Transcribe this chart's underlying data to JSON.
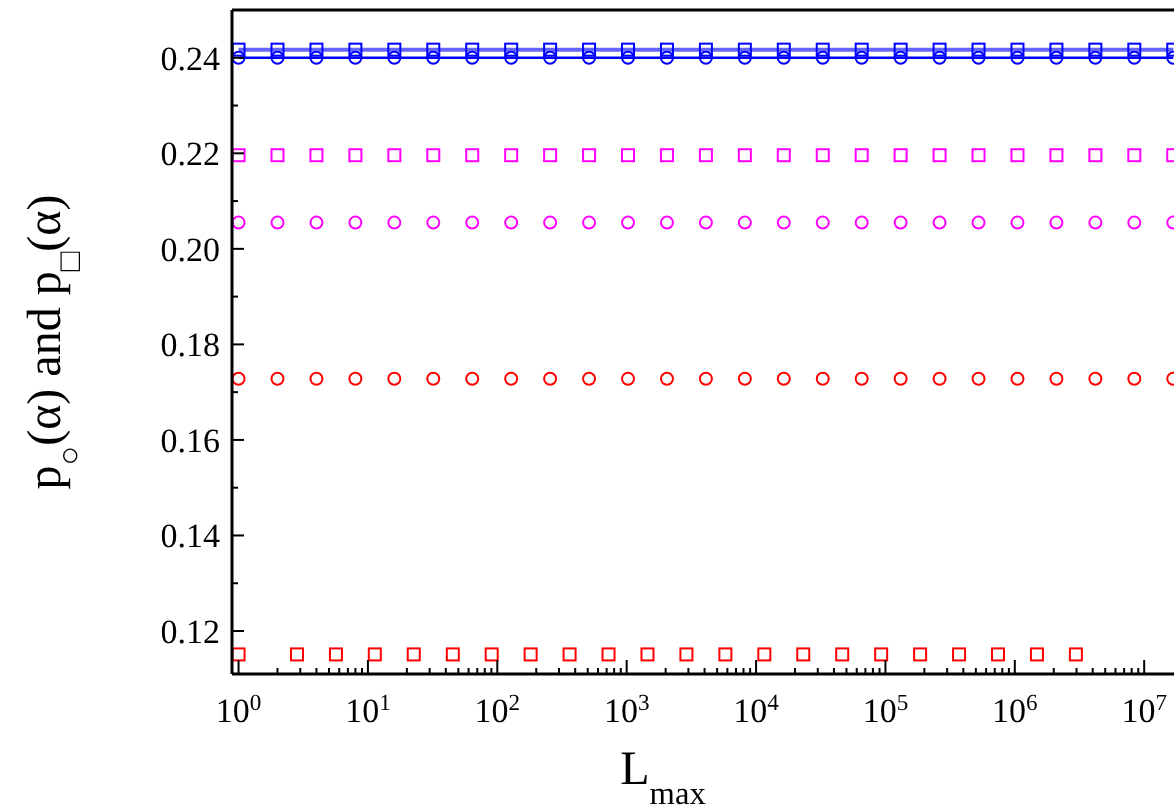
{
  "chart_data": {
    "type": "line",
    "xlabel": "L$_{max}$",
    "ylabel": "p$_{○}$(α) and p$_{□}$(α)",
    "log": "x",
    "grid": false,
    "xlim": [
      0.89,
      17000000
    ],
    "ylim": [
      0.111,
      0.25
    ],
    "xticks": [
      {
        "value": 1,
        "label": "10$^{0}$"
      },
      {
        "value": 2,
        "label": null
      },
      {
        "value": 3,
        "label": null
      },
      {
        "value": 4,
        "label": null
      },
      {
        "value": 5,
        "label": null
      },
      {
        "value": 6,
        "label": null
      },
      {
        "value": 7,
        "label": null
      },
      {
        "value": 8,
        "label": null
      },
      {
        "value": 9,
        "label": null
      },
      {
        "value": 10,
        "label": "10$^{1}$"
      },
      {
        "value": 20,
        "label": null
      },
      {
        "value": 30,
        "label": null
      },
      {
        "value": 40,
        "label": null
      },
      {
        "value": 50,
        "label": null
      },
      {
        "value": 60,
        "label": null
      },
      {
        "value": 70,
        "label": null
      },
      {
        "value": 80,
        "label": null
      },
      {
        "value": 90,
        "label": null
      },
      {
        "value": 100,
        "label": "10$^{2}$"
      },
      {
        "value": 200,
        "label": null
      },
      {
        "value": 300,
        "label": null
      },
      {
        "value": 400,
        "label": null
      },
      {
        "value": 500,
        "label": null
      },
      {
        "value": 600,
        "label": null
      },
      {
        "value": 700,
        "label": null
      },
      {
        "value": 800,
        "label": null
      },
      {
        "value": 900,
        "label": null
      },
      {
        "value": 1000,
        "label": "10$^{3}$"
      },
      {
        "value": 2000,
        "label": null
      },
      {
        "value": 3000,
        "label": null
      },
      {
        "value": 4000,
        "label": null
      },
      {
        "value": 5000,
        "label": null
      },
      {
        "value": 6000,
        "label": null
      },
      {
        "value": 7000,
        "label": null
      },
      {
        "value": 8000,
        "label": null
      },
      {
        "value": 9000,
        "label": null
      },
      {
        "value": 10000,
        "label": "10$^{4}$"
      },
      {
        "value": 20000,
        "label": null
      },
      {
        "value": 30000,
        "label": null
      },
      {
        "value": 40000,
        "label": null
      },
      {
        "value": 50000,
        "label": null
      },
      {
        "value": 60000,
        "label": null
      },
      {
        "value": 70000,
        "label": null
      },
      {
        "value": 80000,
        "label": null
      },
      {
        "value": 90000,
        "label": null
      },
      {
        "value": 100000,
        "label": "10$^{5}$"
      },
      {
        "value": 200000,
        "label": null
      },
      {
        "value": 300000,
        "label": null
      },
      {
        "value": 400000,
        "label": null
      },
      {
        "value": 500000,
        "label": null
      },
      {
        "value": 600000,
        "label": null
      },
      {
        "value": 700000,
        "label": null
      },
      {
        "value": 800000,
        "label": null
      },
      {
        "value": 900000,
        "label": null
      },
      {
        "value": 1000000,
        "label": "10$^{6}$"
      },
      {
        "value": 2000000,
        "label": null
      },
      {
        "value": 3000000,
        "label": null
      },
      {
        "value": 4000000,
        "label": null
      },
      {
        "value": 5000000,
        "label": null
      },
      {
        "value": 6000000,
        "label": null
      },
      {
        "value": 7000000,
        "label": null
      },
      {
        "value": 8000000,
        "label": null
      },
      {
        "value": 9000000,
        "label": null
      },
      {
        "value": 10000000,
        "label": "10$^{7}$"
      }
    ],
    "yticks": [
      {
        "value": 0.12,
        "label": "0.12"
      },
      {
        "value": 0.13,
        "label": null
      },
      {
        "value": 0.14,
        "label": "0.14"
      },
      {
        "value": 0.15,
        "label": null
      },
      {
        "value": 0.16,
        "label": "0.16"
      },
      {
        "value": 0.17,
        "label": null
      },
      {
        "value": 0.18,
        "label": "0.18"
      },
      {
        "value": 0.19,
        "label": null
      },
      {
        "value": 0.2,
        "label": "0.20"
      },
      {
        "value": 0.21,
        "label": null
      },
      {
        "value": 0.22,
        "label": "0.22"
      },
      {
        "value": 0.23,
        "label": null
      },
      {
        "value": 0.24,
        "label": "0.24"
      }
    ],
    "series": [
      {
        "color": "#0000ff",
        "marker": "square",
        "line_style": "solid",
        "x": [
          1,
          2,
          4,
          8,
          16,
          32,
          64,
          128,
          256,
          512,
          1024,
          2048,
          4096,
          8192,
          16384,
          32768,
          65536,
          131072,
          262144,
          524288,
          1048576,
          2097152,
          4194304,
          8388608,
          16777216
        ],
        "values": [
          0.2417,
          0.2417,
          0.2417,
          0.2417,
          0.2417,
          0.2417,
          0.2417,
          0.2417,
          0.2417,
          0.2417,
          0.2417,
          0.2417,
          0.2417,
          0.2417,
          0.2417,
          0.2417,
          0.2417,
          0.2417,
          0.2417,
          0.2417,
          0.2417,
          0.2417,
          0.2417,
          0.2417,
          0.2417
        ]
      },
      {
        "color": "#0000ff",
        "marker": "circle",
        "line_style": "solid",
        "x": [
          1,
          2,
          4,
          8,
          16,
          32,
          64,
          128,
          256,
          512,
          1024,
          2048,
          4096,
          8192,
          16384,
          32768,
          65536,
          131072,
          262144,
          524288,
          1048576,
          2097152,
          4194304,
          8388608,
          16777216
        ],
        "values": [
          0.24,
          0.24,
          0.24,
          0.24,
          0.24,
          0.24,
          0.24,
          0.24,
          0.24,
          0.24,
          0.24,
          0.24,
          0.24,
          0.24,
          0.24,
          0.24,
          0.24,
          0.24,
          0.24,
          0.24,
          0.24,
          0.24,
          0.24,
          0.24,
          0.24
        ]
      },
      {
        "type": "scatter",
        "color": "#ff00ff",
        "marker": "square",
        "x": [
          1,
          2,
          4,
          8,
          16,
          32,
          64,
          128,
          256,
          512,
          1024,
          2048,
          4096,
          8192,
          16384,
          32768,
          65536,
          131072,
          262144,
          524288,
          1048576,
          2097152,
          4194304,
          8388608,
          16777216
        ],
        "values": [
          0.2196,
          0.2196,
          0.2196,
          0.2196,
          0.2196,
          0.2196,
          0.2196,
          0.2196,
          0.2196,
          0.2196,
          0.2196,
          0.2196,
          0.2196,
          0.2196,
          0.2196,
          0.2196,
          0.2196,
          0.2196,
          0.2196,
          0.2196,
          0.2196,
          0.2196,
          0.2196,
          0.2196,
          0.2196
        ]
      },
      {
        "type": "scatter",
        "color": "#ff00ff",
        "marker": "circle",
        "x": [
          1,
          2,
          4,
          8,
          16,
          32,
          64,
          128,
          256,
          512,
          1024,
          2048,
          4096,
          8192,
          16384,
          32768,
          65536,
          131072,
          262144,
          524288,
          1048576,
          2097152,
          4194304,
          8388608,
          16777216
        ],
        "values": [
          0.2055,
          0.2055,
          0.2055,
          0.2055,
          0.2055,
          0.2055,
          0.2055,
          0.2055,
          0.2055,
          0.2055,
          0.2055,
          0.2055,
          0.2055,
          0.2055,
          0.2055,
          0.2055,
          0.2055,
          0.2055,
          0.2055,
          0.2055,
          0.2055,
          0.2055,
          0.2055,
          0.2055,
          0.2055
        ]
      },
      {
        "type": "scatter",
        "color": "#ff0000",
        "marker": "circle",
        "x": [
          1,
          2,
          4,
          8,
          16,
          32,
          64,
          128,
          256,
          512,
          1024,
          2048,
          4096,
          8192,
          16384,
          32768,
          65536,
          131072,
          262144,
          524288,
          1048576,
          2097152,
          4194304,
          8388608,
          16777216
        ],
        "values": [
          0.1728,
          0.1728,
          0.1728,
          0.1728,
          0.1728,
          0.1728,
          0.1728,
          0.1728,
          0.1728,
          0.1728,
          0.1728,
          0.1728,
          0.1728,
          0.1728,
          0.1728,
          0.1728,
          0.1728,
          0.1728,
          0.1728,
          0.1728,
          0.1728,
          0.1728,
          0.1728,
          0.1728,
          0.1728
        ]
      },
      {
        "type": "scatter",
        "color": "#ff0000",
        "marker": "square",
        "x": [
          1,
          2.83,
          5.66,
          11.3,
          22.6,
          45.3,
          90.5,
          181,
          362,
          724,
          1448,
          2896,
          5793,
          11585,
          23170,
          46341,
          92682,
          185364,
          370728,
          741455,
          1482910,
          2965821
        ],
        "values": [
          0.1151,
          0.1151,
          0.1151,
          0.1151,
          0.1151,
          0.1151,
          0.1151,
          0.1151,
          0.1151,
          0.1151,
          0.1151,
          0.1151,
          0.1151,
          0.1151,
          0.1151,
          0.1151,
          0.1151,
          0.1151,
          0.1151,
          0.1151,
          0.1151,
          0.1151
        ]
      }
    ]
  }
}
